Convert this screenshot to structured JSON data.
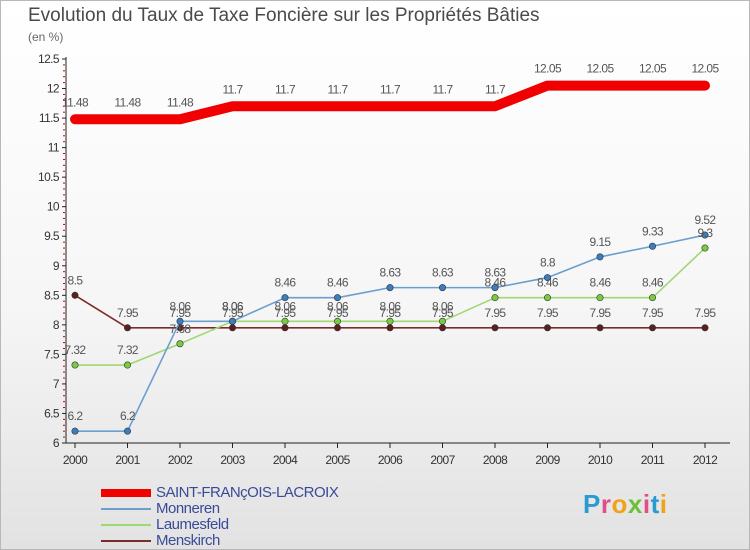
{
  "header": {
    "title": "Evolution du Taux de Taxe Foncière sur les Propriétés Bâties",
    "unit": "(en %)"
  },
  "logo": {
    "text": "Proxiti",
    "colors": [
      "#2a9bd0",
      "#e14f8a",
      "#f1a21a",
      "#6dbf3a",
      "#e14f8a",
      "#2a9bd0",
      "#f1a21a"
    ]
  },
  "chart_data": {
    "type": "line",
    "title": "Evolution du Taux de Taxe Foncière sur les Propriétés Bâties",
    "ylabel": "(en %)",
    "xlabel": "",
    "categories": [
      "2000",
      "2001",
      "2002",
      "2003",
      "2004",
      "2005",
      "2006",
      "2007",
      "2008",
      "2009",
      "2010",
      "2011",
      "2012"
    ],
    "ylim": [
      6,
      12.5
    ],
    "yticks": [
      "6",
      "6.5",
      "7",
      "7.5",
      "8",
      "8.5",
      "9",
      "9.5",
      "10",
      "10.5",
      "11",
      "11.5",
      "12",
      "12.5"
    ],
    "grid": false,
    "legend_position": "bottom-left",
    "series": [
      {
        "name": "SAINT-FRANçOIS-LACROIX",
        "color": "#f00000",
        "marker": "none",
        "values": [
          11.48,
          11.48,
          11.48,
          11.7,
          11.7,
          11.7,
          11.7,
          11.7,
          11.7,
          12.05,
          12.05,
          12.05,
          12.05
        ],
        "labels": [
          "11.48",
          "11.48",
          "11.48",
          "11.7",
          "11.7",
          "11.7",
          "11.7",
          "11.7",
          "11.7",
          "12.05",
          "12.05",
          "12.05",
          "12.05"
        ]
      },
      {
        "name": "Monneren",
        "color": "#6b9fcf",
        "marker": "#3a7dc3",
        "values": [
          6.2,
          6.2,
          8.06,
          8.06,
          8.46,
          8.46,
          8.63,
          8.63,
          8.63,
          8.8,
          9.15,
          9.33,
          9.52
        ],
        "labels": [
          "6.2",
          "6.2",
          "8.06",
          "8.06",
          "8.46",
          "8.46",
          "8.63",
          "8.63",
          "8.63",
          "8.8",
          "9.15",
          "9.33",
          "9.52"
        ]
      },
      {
        "name": "Laumesfeld",
        "color": "#9fd870",
        "marker": "#7acc3e",
        "values": [
          7.32,
          7.32,
          7.68,
          8.06,
          8.06,
          8.06,
          8.06,
          8.06,
          8.46,
          8.46,
          8.46,
          8.46,
          9.3
        ],
        "labels": [
          "7.32",
          "7.32",
          "7.68",
          "8.06",
          "8.06",
          "8.06",
          "8.06",
          "8.06",
          "8.46",
          "8.46",
          "8.46",
          "8.46",
          "9.3"
        ]
      },
      {
        "name": "Menskirch",
        "color": "#7a2c2c",
        "marker": "#5c1f1f",
        "values": [
          8.5,
          7.95,
          7.95,
          7.95,
          7.95,
          7.95,
          7.95,
          7.95,
          7.95,
          7.95,
          7.95,
          7.95,
          7.95
        ],
        "labels": [
          "8.5",
          "7.95",
          "7.95",
          "7.95",
          "7.95",
          "7.95",
          "7.95",
          "7.95",
          "7.95",
          "7.95",
          "7.95",
          "7.95",
          "7.95"
        ]
      }
    ]
  }
}
